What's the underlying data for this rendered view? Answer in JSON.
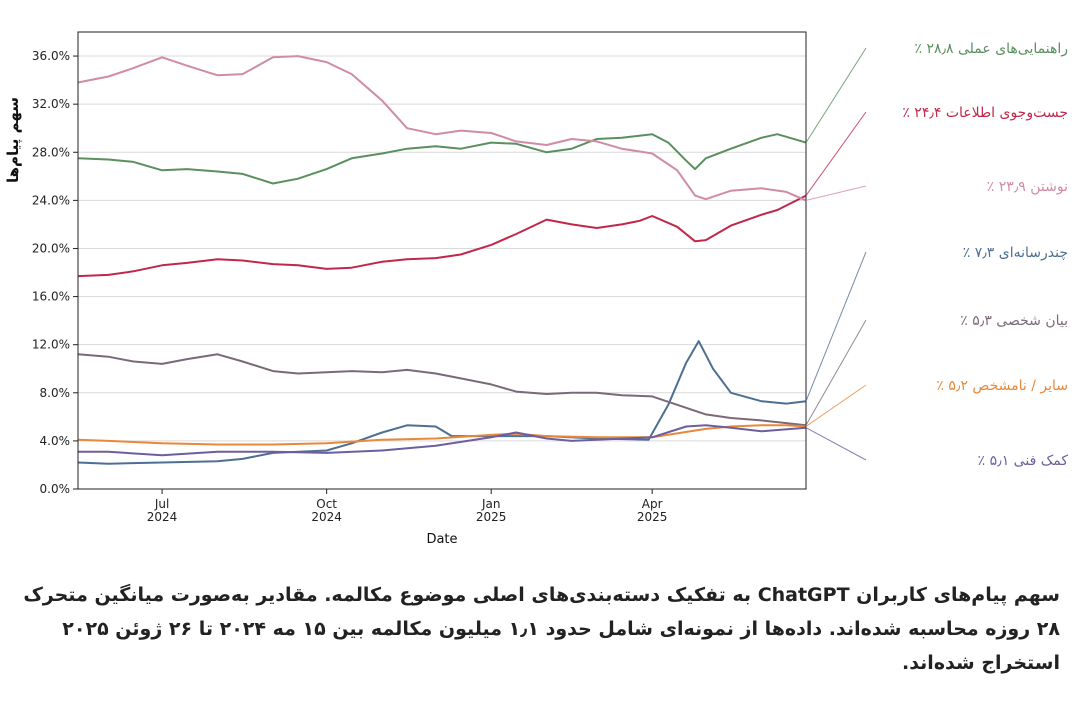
{
  "chart_data": {
    "type": "line",
    "xlabel": "Date",
    "ylabel": "سهم پیام‌ها",
    "ylim": [
      0,
      0.38
    ],
    "xlim": [
      "2024-05-15",
      "2025-06-26"
    ],
    "grid": "horizontal",
    "legend": "right, labels connected to line ends",
    "yticks": [
      {
        "value": 0.0,
        "label": "0.0%"
      },
      {
        "value": 0.04,
        "label": "4.0%"
      },
      {
        "value": 0.08,
        "label": "8.0%"
      },
      {
        "value": 0.12,
        "label": "12.0%"
      },
      {
        "value": 0.16,
        "label": "16.0%"
      },
      {
        "value": 0.2,
        "label": "20.0%"
      },
      {
        "value": 0.24,
        "label": "24.0%"
      },
      {
        "value": 0.28,
        "label": "28.0%"
      },
      {
        "value": 0.32,
        "label": "32.0%"
      },
      {
        "value": 0.36,
        "label": "36.0%"
      }
    ],
    "xticks": [
      {
        "date": "2024-07-01",
        "month": "Jul",
        "year": "2024"
      },
      {
        "date": "2024-10-01",
        "month": "Oct",
        "year": "2024"
      },
      {
        "date": "2025-01-01",
        "month": "Jan",
        "year": "2025"
      },
      {
        "date": "2025-04-01",
        "month": "Apr",
        "year": "2025"
      }
    ],
    "series": [
      {
        "name": "راهنمایی‌های عملی",
        "end_label": "راهنمایی‌های عملی ۲۸٫۸ ٪",
        "color": "#5a8f5e",
        "x": [
          "2024-05-15",
          "2024-06-01",
          "2024-06-15",
          "2024-07-01",
          "2024-07-15",
          "2024-08-01",
          "2024-08-15",
          "2024-09-01",
          "2024-09-15",
          "2024-10-01",
          "2024-10-15",
          "2024-11-01",
          "2024-11-15",
          "2024-12-01",
          "2024-12-15",
          "2025-01-01",
          "2025-01-15",
          "2025-02-01",
          "2025-02-15",
          "2025-03-01",
          "2025-03-15",
          "2025-04-01",
          "2025-04-10",
          "2025-04-20",
          "2025-04-25",
          "2025-05-01",
          "2025-05-15",
          "2025-06-01",
          "2025-06-10",
          "2025-06-26"
        ],
        "y": [
          0.275,
          0.274,
          0.272,
          0.265,
          0.266,
          0.264,
          0.262,
          0.254,
          0.258,
          0.266,
          0.275,
          0.279,
          0.283,
          0.285,
          0.283,
          0.288,
          0.287,
          0.28,
          0.283,
          0.291,
          0.292,
          0.295,
          0.288,
          0.273,
          0.266,
          0.275,
          0.283,
          0.292,
          0.295,
          0.288
        ]
      },
      {
        "name": "جست‌وجوی اطلاعات",
        "end_label": "جست‌وجوی اطلاعات ۲۴٫۴ ٪",
        "color": "#c0284a",
        "x": [
          "2024-05-15",
          "2024-06-01",
          "2024-06-15",
          "2024-07-01",
          "2024-07-15",
          "2024-08-01",
          "2024-08-15",
          "2024-09-01",
          "2024-09-15",
          "2024-10-01",
          "2024-10-15",
          "2024-11-01",
          "2024-11-15",
          "2024-12-01",
          "2024-12-15",
          "2025-01-01",
          "2025-01-15",
          "2025-02-01",
          "2025-02-15",
          "2025-03-01",
          "2025-03-15",
          "2025-03-25",
          "2025-04-01",
          "2025-04-15",
          "2025-04-25",
          "2025-05-01",
          "2025-05-15",
          "2025-06-01",
          "2025-06-10",
          "2025-06-26"
        ],
        "y": [
          0.177,
          0.178,
          0.181,
          0.186,
          0.188,
          0.191,
          0.19,
          0.187,
          0.186,
          0.183,
          0.184,
          0.189,
          0.191,
          0.192,
          0.195,
          0.203,
          0.212,
          0.224,
          0.22,
          0.217,
          0.22,
          0.223,
          0.227,
          0.218,
          0.206,
          0.207,
          0.219,
          0.228,
          0.232,
          0.244
        ]
      },
      {
        "name": "نوشتن",
        "end_label": "نوشتن ۲۳٫۹ ٪",
        "color": "#d08ca2",
        "x": [
          "2024-05-15",
          "2024-06-01",
          "2024-06-15",
          "2024-07-01",
          "2024-07-15",
          "2024-08-01",
          "2024-08-15",
          "2024-09-01",
          "2024-09-15",
          "2024-10-01",
          "2024-10-15",
          "2024-11-01",
          "2024-11-15",
          "2024-12-01",
          "2024-12-15",
          "2025-01-01",
          "2025-01-15",
          "2025-02-01",
          "2025-02-15",
          "2025-03-01",
          "2025-03-15",
          "2025-04-01",
          "2025-04-15",
          "2025-04-25",
          "2025-05-01",
          "2025-05-15",
          "2025-06-01",
          "2025-06-15",
          "2025-06-26"
        ],
        "y": [
          0.338,
          0.343,
          0.35,
          0.359,
          0.352,
          0.344,
          0.345,
          0.359,
          0.36,
          0.355,
          0.345,
          0.323,
          0.3,
          0.295,
          0.298,
          0.296,
          0.289,
          0.286,
          0.291,
          0.289,
          0.283,
          0.279,
          0.265,
          0.244,
          0.241,
          0.248,
          0.25,
          0.247,
          0.24
        ]
      },
      {
        "name": "چندرسانه‌ای",
        "end_label": "چندرسانه‌ای ۷٫۳ ٪",
        "color": "#4e6f94",
        "x": [
          "2024-05-15",
          "2024-06-01",
          "2024-07-01",
          "2024-08-01",
          "2024-08-15",
          "2024-09-01",
          "2024-10-01",
          "2024-10-15",
          "2024-11-01",
          "2024-11-15",
          "2024-12-01",
          "2024-12-10",
          "2025-01-01",
          "2025-02-01",
          "2025-03-01",
          "2025-03-30",
          "2025-04-10",
          "2025-04-20",
          "2025-04-27",
          "2025-05-05",
          "2025-05-15",
          "2025-06-01",
          "2025-06-15",
          "2025-06-26"
        ],
        "y": [
          0.022,
          0.021,
          0.022,
          0.023,
          0.025,
          0.03,
          0.032,
          0.038,
          0.047,
          0.053,
          0.052,
          0.044,
          0.044,
          0.044,
          0.042,
          0.041,
          0.07,
          0.105,
          0.123,
          0.1,
          0.08,
          0.073,
          0.071,
          0.073
        ]
      },
      {
        "name": "بیان شخصی",
        "end_label": "بیان شخصی ۵٫۳ ٪",
        "color": "#7a6a78",
        "x": [
          "2024-05-15",
          "2024-06-01",
          "2024-06-15",
          "2024-07-01",
          "2024-07-15",
          "2024-08-01",
          "2024-08-15",
          "2024-09-01",
          "2024-09-15",
          "2024-10-01",
          "2024-10-15",
          "2024-11-01",
          "2024-11-15",
          "2024-12-01",
          "2024-12-15",
          "2025-01-01",
          "2025-01-15",
          "2025-02-01",
          "2025-02-15",
          "2025-03-01",
          "2025-03-15",
          "2025-04-01",
          "2025-04-15",
          "2025-05-01",
          "2025-05-15",
          "2025-06-01",
          "2025-06-26"
        ],
        "y": [
          0.112,
          0.11,
          0.106,
          0.104,
          0.108,
          0.112,
          0.106,
          0.098,
          0.096,
          0.097,
          0.098,
          0.097,
          0.099,
          0.096,
          0.092,
          0.087,
          0.081,
          0.079,
          0.08,
          0.08,
          0.078,
          0.077,
          0.07,
          0.062,
          0.059,
          0.057,
          0.053
        ]
      },
      {
        "name": "سایر / نامشخص",
        "end_label": "سایر / نامشخص ۵٫۲ ٪",
        "color": "#e8883a",
        "x": [
          "2024-05-15",
          "2024-06-01",
          "2024-07-01",
          "2024-08-01",
          "2024-09-01",
          "2024-10-01",
          "2024-11-01",
          "2024-12-01",
          "2025-01-01",
          "2025-01-15",
          "2025-02-01",
          "2025-03-01",
          "2025-04-01",
          "2025-05-01",
          "2025-05-15",
          "2025-06-01",
          "2025-06-15",
          "2025-06-26"
        ],
        "y": [
          0.041,
          0.04,
          0.038,
          0.037,
          0.037,
          0.038,
          0.041,
          0.042,
          0.045,
          0.046,
          0.044,
          0.043,
          0.043,
          0.05,
          0.052,
          0.053,
          0.053,
          0.052
        ]
      },
      {
        "name": "کمک فنی",
        "end_label": "کمک فنی ۵٫۱ ٪",
        "color": "#6c5ea0",
        "x": [
          "2024-05-15",
          "2024-06-01",
          "2024-07-01",
          "2024-08-01",
          "2024-09-01",
          "2024-10-01",
          "2024-11-01",
          "2024-12-01",
          "2025-01-01",
          "2025-01-15",
          "2025-02-01",
          "2025-02-15",
          "2025-03-01",
          "2025-04-01",
          "2025-04-20",
          "2025-05-01",
          "2025-05-15",
          "2025-06-01",
          "2025-06-26"
        ],
        "y": [
          0.031,
          0.031,
          0.028,
          0.031,
          0.031,
          0.03,
          0.032,
          0.036,
          0.043,
          0.047,
          0.042,
          0.04,
          0.041,
          0.043,
          0.052,
          0.053,
          0.051,
          0.048,
          0.051
        ]
      }
    ]
  },
  "caption": "سهم پیام‌های کاربران ChatGPT به تفکیک دسته‌بندی‌های اصلی موضوع مکالمه. مقادیر به‌صورت میانگین متحرک ۲۸ روزه محاسبه شده‌اند. داده‌ها از نمونه‌ای شامل حدود ۱٫۱ میلیون مکالمه بین ۱۵ مه ۲۰۲۴ تا ۲۶ ژوئن ۲۰۲۵ استخراج شده‌اند."
}
